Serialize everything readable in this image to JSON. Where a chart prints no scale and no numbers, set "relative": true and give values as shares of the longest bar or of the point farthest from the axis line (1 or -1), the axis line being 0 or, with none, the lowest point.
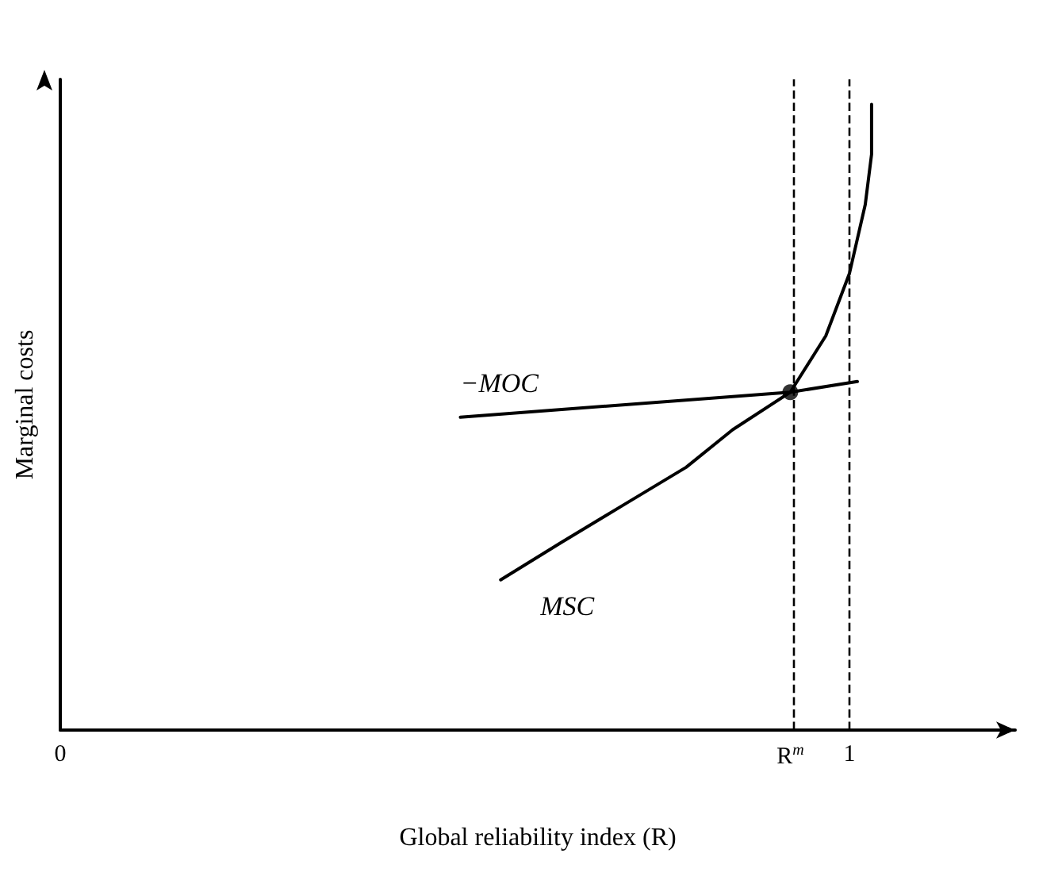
{
  "chart_data": {
    "type": "line",
    "relative": true,
    "xlabel": "Global reliability index (R)",
    "ylabel": "Marginal costs",
    "xlim": [
      0,
      1.21
    ],
    "xticks": [
      0,
      {
        "value": 0.925,
        "label": "R$^{m}$"
      },
      1
    ],
    "marker": "none",
    "line_style": "solid",
    "grid": false,
    "legend": false,
    "series": [
      {
        "name": "MSC",
        "color": "#000000",
        "x": [
          0.558,
          0.635,
          0.714,
          0.793,
          0.852,
          0.925,
          0.97,
          1.0,
          1.02,
          1.028,
          1.028
        ],
        "values": [
          0.24,
          0.3,
          0.36,
          0.42,
          0.48,
          0.54,
          0.63,
          0.73,
          0.84,
          0.92,
          1
        ]
      },
      {
        "name": "−MOC",
        "color": "#000000",
        "x": [
          0.507,
          0.925,
          1.01
        ],
        "values": [
          0.5,
          0.54,
          0.557
        ]
      },
      {
        "type": "scatter",
        "marker": "circle",
        "color": "#000000",
        "x": [
          0.925
        ],
        "values": [
          0.54
        ]
      }
    ],
    "ref_lines": [
      {
        "axis": "x",
        "value": 0.925,
        "line_style": "dashed",
        "color": "#000000"
      },
      {
        "axis": "x",
        "value": 1,
        "line_style": "dashed",
        "color": "#000000"
      }
    ]
  }
}
